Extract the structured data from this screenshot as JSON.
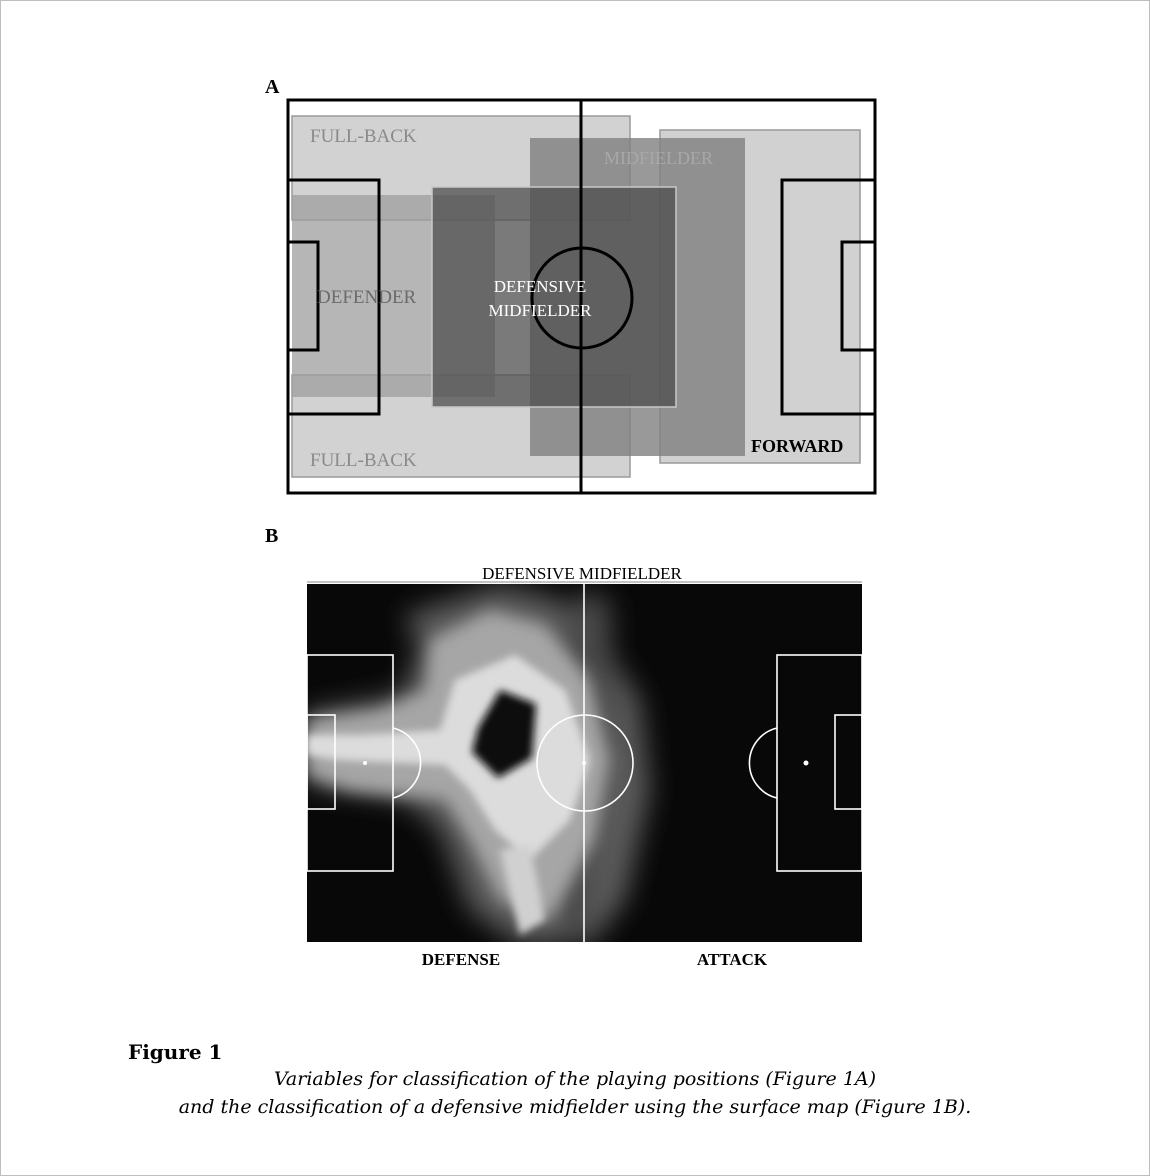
{
  "panel_a": {
    "letter": "A",
    "zones": {
      "full_back_top": "FULL-BACK",
      "full_back_bottom": "FULL-BACK",
      "midfielder": "MIDFIELDER",
      "defender": "DEFENDER",
      "defensive_midfielder_line1": "DEFENSIVE",
      "defensive_midfielder_line2": "MIDFIELDER",
      "forward": "FORWARD"
    }
  },
  "panel_b": {
    "letter": "B",
    "title": "DEFENSIVE MIDFIELDER",
    "defense_label": "DEFENSE",
    "attack_label": "ATTACK"
  },
  "figure": {
    "label": "Figure 1",
    "caption_line1": "Variables for classification of the playing positions (Figure 1A)",
    "caption_line2": "and the classification of a defensive midfielder using the surface map (Figure 1B)."
  }
}
